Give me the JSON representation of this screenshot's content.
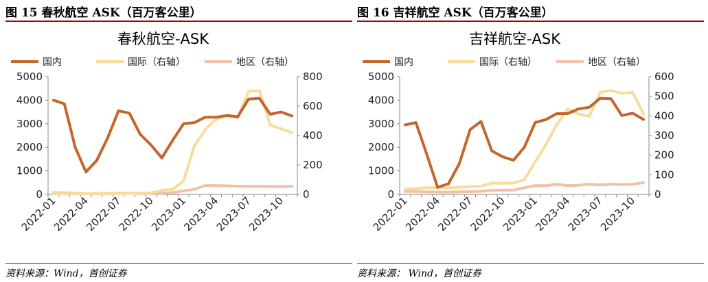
{
  "figures": [
    {
      "caption": "图 15 春秋航空 ASK（百万客公里）",
      "source": "资料来源：Wind，首创证券",
      "chart_data": {
        "type": "line",
        "title": "春秋航空-ASK",
        "legend_position": "top",
        "grid": false,
        "x": [
          "2022-01",
          "2022-02",
          "2022-03",
          "2022-04",
          "2022-05",
          "2022-06",
          "2022-07",
          "2022-08",
          "2022-09",
          "2022-10",
          "2022-11",
          "2022-12",
          "2023-01",
          "2023-02",
          "2023-03",
          "2023-04",
          "2023-05",
          "2023-06",
          "2023-07",
          "2023-08",
          "2023-09",
          "2023-10",
          "2023-11"
        ],
        "x_tick_labels": [
          "2022-01",
          "2022-04",
          "2022-07",
          "2022-10",
          "2023-01",
          "2023-04",
          "2023-07",
          "2023-10"
        ],
        "left_axis": {
          "range": [
            0,
            5000
          ],
          "ticks": [
            "0",
            "1000",
            "2000",
            "3000",
            "4000",
            "5000"
          ]
        },
        "right_axis": {
          "range": [
            0,
            800
          ],
          "ticks": [
            "0",
            "200",
            "400",
            "600",
            "800"
          ]
        },
        "series": [
          {
            "name": "国内",
            "axis": "left",
            "color": "#c4652a",
            "values": [
              4000,
              3850,
              2000,
              950,
              1450,
              2400,
              3550,
              3450,
              2550,
              2100,
              1550,
              2300,
              3000,
              3050,
              3280,
              3280,
              3350,
              3300,
              4050,
              4080,
              3400,
              3500,
              3330
            ]
          },
          {
            "name": "国际（右轴）",
            "axis": "right",
            "color": "#f8dc9c",
            "values": [
              5,
              5,
              5,
              5,
              5,
              5,
              6,
              6,
              8,
              10,
              28,
              35,
              90,
              330,
              440,
              510,
              535,
              520,
              700,
              705,
              470,
              445,
              420
            ]
          },
          {
            "name": "地区（右轴）",
            "axis": "right",
            "color": "#f2c0a4",
            "values": [
              12,
              11,
              8,
              6,
              6,
              7,
              8,
              8,
              9,
              8,
              8,
              12,
              24,
              35,
              60,
              60,
              58,
              56,
              55,
              55,
              54,
              54,
              54
            ]
          }
        ]
      }
    },
    {
      "caption": "图 16 吉祥航空 ASK（百万客公里）",
      "source": "资料来源： Wind，首创证券",
      "chart_data": {
        "type": "line",
        "title": "吉祥航空-ASK",
        "legend_position": "top",
        "grid": false,
        "x": [
          "2022-01",
          "2022-02",
          "2022-03",
          "2022-04",
          "2022-05",
          "2022-06",
          "2022-07",
          "2022-08",
          "2022-09",
          "2022-10",
          "2022-11",
          "2022-12",
          "2023-01",
          "2023-02",
          "2023-03",
          "2023-04",
          "2023-05",
          "2023-06",
          "2023-07",
          "2023-08",
          "2023-09",
          "2023-10",
          "2023-11"
        ],
        "x_tick_labels": [
          "2022-01",
          "2022-04",
          "2022-07",
          "2022-10",
          "2023-01",
          "2023-04",
          "2023-07",
          "2023-10"
        ],
        "left_axis": {
          "range": [
            0,
            5000
          ],
          "ticks": [
            "0",
            "1000",
            "2000",
            "3000",
            "4000",
            "5000"
          ]
        },
        "right_axis": {
          "range": [
            0,
            600
          ],
          "ticks": [
            "0",
            "100",
            "200",
            "300",
            "400",
            "500",
            "600"
          ]
        },
        "series": [
          {
            "name": "国内",
            "axis": "left",
            "color": "#c4652a",
            "values": [
              2950,
              3050,
              1700,
              300,
              450,
              1300,
              2750,
              3100,
              1850,
              1600,
              1450,
              2000,
              3050,
              3180,
              3430,
              3430,
              3630,
              3700,
              4080,
              4060,
              3350,
              3450,
              3180
            ]
          },
          {
            "name": "国际（右轴）",
            "axis": "right",
            "color": "#f8dc9c",
            "values": [
              26,
              30,
              34,
              34,
              33,
              36,
              40,
              42,
              58,
              56,
              58,
              75,
              165,
              255,
              355,
              435,
              410,
              398,
              520,
              530,
              515,
              520,
              410
            ]
          },
          {
            "name": "地区（右轴）",
            "axis": "right",
            "color": "#f2c0a4",
            "values": [
              15,
              15,
              13,
              12,
              12,
              13,
              14,
              16,
              20,
              22,
              22,
              34,
              45,
              44,
              52,
              45,
              46,
              52,
              48,
              52,
              50,
              52,
              60
            ]
          }
        ]
      }
    }
  ]
}
